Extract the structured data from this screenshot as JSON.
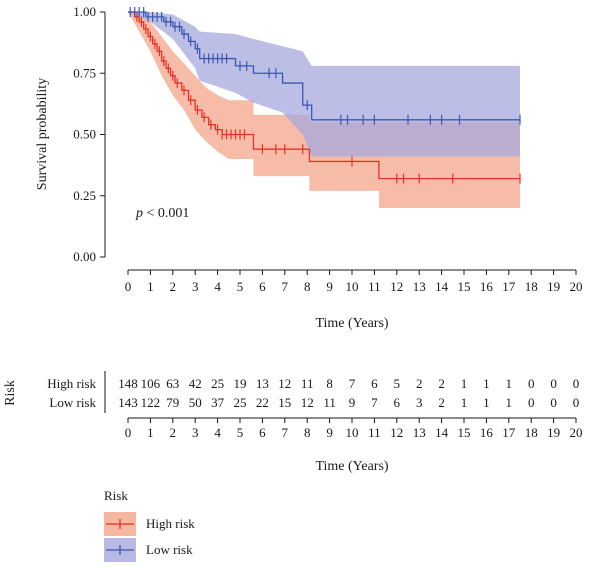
{
  "chart_data": {
    "type": "line",
    "subtype": "kaplan-meier",
    "xlabel": "Time (Years)",
    "ylabel": "Survival probability",
    "xlim": [
      0,
      20
    ],
    "ylim": [
      0,
      1
    ],
    "x_ticks": [
      "0",
      "1",
      "2",
      "3",
      "4",
      "5",
      "6",
      "7",
      "8",
      "9",
      "10",
      "11",
      "12",
      "13",
      "14",
      "15",
      "16",
      "17",
      "18",
      "19",
      "20"
    ],
    "y_ticks": [
      "0.00",
      "0.25",
      "0.50",
      "0.75",
      "1.00"
    ],
    "y_tick_values": [
      0,
      0.25,
      0.5,
      0.75,
      1.0
    ],
    "annotation_p": "p",
    "annotation_rest": " < 0.001",
    "series": [
      {
        "name": "High risk",
        "color": "#e8302a",
        "band_color": "#f4a58a",
        "steps": [
          [
            0,
            1.0
          ],
          [
            0.3,
            0.98
          ],
          [
            0.5,
            0.96
          ],
          [
            0.7,
            0.93
          ],
          [
            0.9,
            0.9
          ],
          [
            1.1,
            0.87
          ],
          [
            1.3,
            0.84
          ],
          [
            1.5,
            0.8
          ],
          [
            1.7,
            0.77
          ],
          [
            1.9,
            0.74
          ],
          [
            2.1,
            0.71
          ],
          [
            2.4,
            0.68
          ],
          [
            2.7,
            0.64
          ],
          [
            3.0,
            0.6
          ],
          [
            3.3,
            0.57
          ],
          [
            3.6,
            0.54
          ],
          [
            3.9,
            0.52
          ],
          [
            4.2,
            0.5
          ],
          [
            5.6,
            0.44
          ],
          [
            8.1,
            0.39
          ],
          [
            11.2,
            0.32
          ],
          [
            17.5,
            0.32
          ]
        ],
        "ci_upper": [
          [
            0,
            1.0
          ],
          [
            0.5,
            0.99
          ],
          [
            1,
            0.96
          ],
          [
            1.5,
            0.9
          ],
          [
            2,
            0.84
          ],
          [
            2.5,
            0.79
          ],
          [
            3,
            0.74
          ],
          [
            3.5,
            0.69
          ],
          [
            4,
            0.66
          ],
          [
            4.5,
            0.64
          ],
          [
            5.6,
            0.64
          ],
          [
            5.6,
            0.58
          ],
          [
            8.1,
            0.58
          ],
          [
            8.1,
            0.55
          ],
          [
            11.2,
            0.55
          ],
          [
            11.2,
            0.55
          ],
          [
            17.5,
            0.55
          ]
        ],
        "ci_lower": [
          [
            0,
            1.0
          ],
          [
            0.5,
            0.92
          ],
          [
            1,
            0.84
          ],
          [
            1.5,
            0.74
          ],
          [
            2,
            0.66
          ],
          [
            2.5,
            0.6
          ],
          [
            3,
            0.52
          ],
          [
            3.5,
            0.47
          ],
          [
            4,
            0.43
          ],
          [
            4.5,
            0.4
          ],
          [
            5.6,
            0.4
          ],
          [
            5.6,
            0.33
          ],
          [
            8.1,
            0.33
          ],
          [
            8.1,
            0.27
          ],
          [
            11.2,
            0.27
          ],
          [
            11.2,
            0.2
          ],
          [
            17.5,
            0.2
          ]
        ],
        "censor_x": [
          0.4,
          0.6,
          0.8,
          1.0,
          1.2,
          1.4,
          1.6,
          1.8,
          2.0,
          2.2,
          2.5,
          2.8,
          3.1,
          3.4,
          3.7,
          4.0,
          4.2,
          4.4,
          4.6,
          4.8,
          5.0,
          5.2,
          6.0,
          6.6,
          7.0,
          7.8,
          10.0,
          12.0,
          12.3,
          13.0,
          14.5,
          17.5
        ]
      },
      {
        "name": "Low risk",
        "color": "#3a58b0",
        "band_color": "#a7a8de",
        "steps": [
          [
            0,
            1.0
          ],
          [
            0.8,
            0.98
          ],
          [
            1.6,
            0.96
          ],
          [
            2.0,
            0.94
          ],
          [
            2.4,
            0.91
          ],
          [
            2.7,
            0.88
          ],
          [
            3.0,
            0.85
          ],
          [
            3.2,
            0.81
          ],
          [
            4.8,
            0.78
          ],
          [
            5.6,
            0.75
          ],
          [
            6.9,
            0.71
          ],
          [
            7.8,
            0.62
          ],
          [
            8.2,
            0.56
          ],
          [
            17.5,
            0.56
          ]
        ],
        "ci_upper": [
          [
            0,
            1.0
          ],
          [
            1,
            1.0
          ],
          [
            2,
            0.99
          ],
          [
            3,
            0.94
          ],
          [
            3.2,
            0.92
          ],
          [
            4.8,
            0.91
          ],
          [
            5.6,
            0.89
          ],
          [
            6.9,
            0.86
          ],
          [
            7.8,
            0.84
          ],
          [
            8.2,
            0.78
          ],
          [
            17.5,
            0.78
          ]
        ],
        "ci_lower": [
          [
            0,
            1.0
          ],
          [
            1,
            0.96
          ],
          [
            2,
            0.89
          ],
          [
            3,
            0.77
          ],
          [
            3.2,
            0.72
          ],
          [
            4.8,
            0.67
          ],
          [
            5.6,
            0.63
          ],
          [
            6.9,
            0.59
          ],
          [
            7.8,
            0.5
          ],
          [
            8.2,
            0.41
          ],
          [
            17.5,
            0.41
          ]
        ],
        "censor_x": [
          0.1,
          0.3,
          0.5,
          0.7,
          0.9,
          1.1,
          1.3,
          1.5,
          1.7,
          1.9,
          2.1,
          2.3,
          2.5,
          2.8,
          3.1,
          3.4,
          3.6,
          3.8,
          4.0,
          4.2,
          4.4,
          5.0,
          5.3,
          6.3,
          6.6,
          8.0,
          9.5,
          9.8,
          10.5,
          11.0,
          12.5,
          13.5,
          14.0,
          14.8,
          17.5
        ]
      }
    ],
    "risk_table": {
      "title": "Risk",
      "xlabel": "Time (Years)",
      "rows": [
        {
          "label": "High risk",
          "values": [
            "148",
            "106",
            "63",
            "42",
            "25",
            "19",
            "13",
            "12",
            "11",
            "8",
            "7",
            "6",
            "5",
            "2",
            "2",
            "1",
            "1",
            "1",
            "0",
            "0",
            "0"
          ]
        },
        {
          "label": "Low risk",
          "values": [
            "143",
            "122",
            "79",
            "50",
            "37",
            "25",
            "22",
            "15",
            "12",
            "11",
            "9",
            "7",
            "6",
            "3",
            "2",
            "1",
            "1",
            "1",
            "0",
            "0",
            "0"
          ]
        }
      ]
    },
    "legend": {
      "title": "Risk",
      "placement": "bottom-left",
      "items": [
        "High risk",
        "Low risk"
      ]
    }
  }
}
